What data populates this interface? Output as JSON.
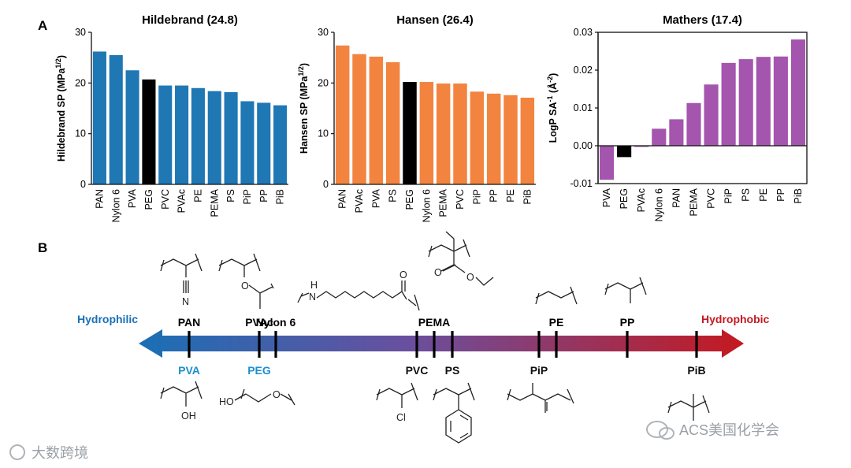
{
  "panels": {
    "a": "A",
    "b": "B"
  },
  "colors": {
    "hildebrand": "#1f77b4",
    "hansen": "#f28440",
    "mathers": "#a455ad",
    "peg": "#000000",
    "hydrophilic": "#1a6fb5",
    "hydrophobic": "#c41920",
    "blue_label": "#1a8fd0"
  },
  "chart_data": [
    {
      "type": "bar",
      "title": "Hildebrand (24.8)",
      "ylabel": "Hildebrand SP (MPa",
      "ylabel_unit": "1/2",
      "ylim": [
        0,
        30
      ],
      "yticks": [
        "0",
        "10",
        "20",
        "30"
      ],
      "categories": [
        "PAN",
        "Nylon 6",
        "PVA",
        "PEG",
        "PVC",
        "PVAc",
        "PE",
        "PEMA",
        "PS",
        "PiP",
        "PP",
        "PiB"
      ],
      "values": [
        26.2,
        25.5,
        22.5,
        20.7,
        19.5,
        19.5,
        19.0,
        18.4,
        18.2,
        16.4,
        16.1,
        15.6
      ],
      "highlight": "PEG"
    },
    {
      "type": "bar",
      "title": "Hansen (26.4)",
      "ylabel": "Hansen SP (MPa",
      "ylabel_unit": "1/2",
      "ylim": [
        0,
        30
      ],
      "yticks": [
        "0",
        "10",
        "20",
        "30"
      ],
      "categories": [
        "PAN",
        "PVAc",
        "PVA",
        "PS",
        "PEG",
        "Nylon 6",
        "PEMA",
        "PVC",
        "PiP",
        "PP",
        "PE",
        "PiB"
      ],
      "values": [
        27.4,
        25.7,
        25.2,
        24.1,
        20.2,
        20.2,
        19.9,
        19.9,
        18.3,
        17.9,
        17.6,
        17.1
      ],
      "highlight": "PEG"
    },
    {
      "type": "bar",
      "title": "Mathers (17.4)",
      "ylabel": "LogP SA",
      "ylabel_unit": "-1",
      "ylabel_tail": "(Å",
      "ylabel_tail_unit": "-2",
      "ylim": [
        -0.01,
        0.03
      ],
      "yticks": [
        "-0.01",
        "0.00",
        "0.01",
        "0.02",
        "0.03"
      ],
      "categories": [
        "PVA",
        "PEG",
        "PVAc",
        "Nylon 6",
        "PAN",
        "PEMA",
        "PVC",
        "PiP",
        "PS",
        "PE",
        "PP",
        "PiB"
      ],
      "values": [
        -0.009,
        -0.003,
        -0.0003,
        0.0045,
        0.007,
        0.0113,
        0.0162,
        0.0219,
        0.0229,
        0.0235,
        0.0236,
        0.0281
      ],
      "highlight": "PEG"
    }
  ],
  "scale": {
    "left_label": "Hydrophilic",
    "right_label": "Hydrophobic",
    "markers_order": [
      "PVA",
      "PAN",
      "PEG",
      "PVAc",
      "Nylon 6",
      "PVC",
      "PEMA",
      "PS",
      "PiP",
      "PE",
      "PP",
      "PiB"
    ],
    "top": [
      "PAN",
      "PVAc",
      "Nylon 6",
      "PEMA",
      "PE",
      "PP"
    ],
    "bottom": [
      "PVA",
      "PEG",
      "PVC",
      "PS",
      "PiP",
      "PiB"
    ],
    "blue_bottom": [
      "PVA",
      "PEG"
    ]
  },
  "structures": {
    "pan_n": "N",
    "pvac_o": "O",
    "nylon_h": "H",
    "nylon_n": "N",
    "nylon_o": "O",
    "pema_o": "O",
    "pva_oh": "OH",
    "peg_ho": "HO",
    "peg_o": "O",
    "pvc_cl": "Cl"
  },
  "watermarks": {
    "left": "大数跨境",
    "right": "ACS美国化学会"
  }
}
